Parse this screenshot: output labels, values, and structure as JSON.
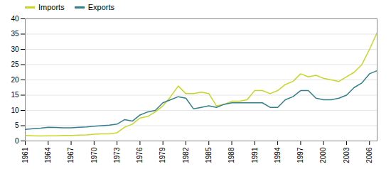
{
  "chart_data": {
    "type": "line",
    "x": [
      1961,
      1962,
      1963,
      1964,
      1965,
      1966,
      1967,
      1968,
      1969,
      1970,
      1971,
      1972,
      1973,
      1974,
      1975,
      1976,
      1977,
      1978,
      1979,
      1980,
      1981,
      1982,
      1983,
      1984,
      1985,
      1986,
      1987,
      1988,
      1989,
      1990,
      1991,
      1992,
      1993,
      1994,
      1995,
      1996,
      1997,
      1998,
      1999,
      2000,
      2001,
      2002,
      2003,
      2004,
      2005,
      2006,
      2007
    ],
    "series": [
      {
        "name": "Imports",
        "color": "#c8d629",
        "values": [
          1.8,
          1.7,
          1.6,
          1.7,
          1.7,
          1.8,
          1.8,
          1.9,
          2.0,
          2.2,
          2.3,
          2.3,
          2.7,
          4.5,
          5.5,
          7.5,
          8.0,
          9.5,
          11.5,
          14.5,
          18.0,
          15.5,
          15.5,
          16.0,
          15.5,
          11.5,
          12.0,
          13.0,
          13.0,
          13.5,
          16.5,
          16.5,
          15.5,
          16.5,
          18.5,
          19.5,
          22.0,
          21.0,
          21.5,
          20.5,
          20.0,
          19.5,
          21.0,
          22.5,
          25.0,
          30.0,
          35.5
        ]
      },
      {
        "name": "Exports",
        "color": "#337f8c",
        "values": [
          3.8,
          4.0,
          4.2,
          4.5,
          4.4,
          4.3,
          4.3,
          4.5,
          4.6,
          4.8,
          5.0,
          5.2,
          5.5,
          7.0,
          6.5,
          8.5,
          9.5,
          10.0,
          12.5,
          13.5,
          14.5,
          14.0,
          10.5,
          11.0,
          11.5,
          11.0,
          12.0,
          12.5,
          12.5,
          12.5,
          12.5,
          12.5,
          11.0,
          11.0,
          13.5,
          14.5,
          16.5,
          16.5,
          14.0,
          13.5,
          13.5,
          14.0,
          15.0,
          17.5,
          19.0,
          22.0,
          23.0
        ]
      }
    ],
    "xlim": [
      1961,
      2007
    ],
    "xticks": [
      1961,
      1964,
      1967,
      1970,
      1973,
      1976,
      1979,
      1982,
      1985,
      1988,
      1991,
      1994,
      1997,
      2000,
      2003,
      2006
    ],
    "ylim": [
      0,
      40
    ],
    "yticks": [
      0,
      5,
      10,
      15,
      20,
      25,
      30,
      35,
      40
    ],
    "grid": true,
    "legend": "upper left"
  }
}
